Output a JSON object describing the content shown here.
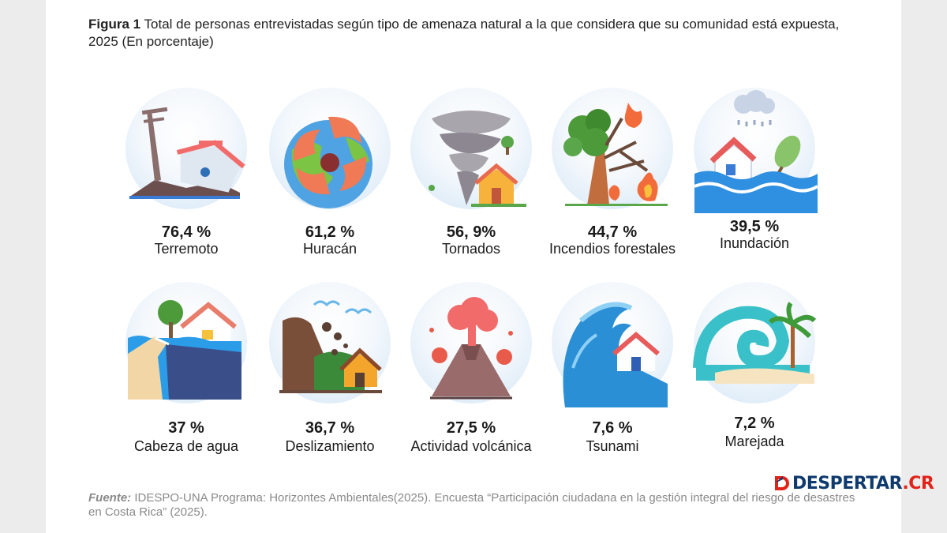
{
  "header": {
    "figure_label": "Figura 1",
    "title_text": "Total de personas entrevistadas según tipo de amenaza natural a la que considera que su comunidad está expuesta, 2025 (En porcentaje)"
  },
  "chart_data": {
    "type": "table",
    "unit": "%",
    "items": [
      {
        "label": "Terremoto",
        "value": 76.4,
        "value_text": "76,4 %",
        "icon": "earthquake-icon"
      },
      {
        "label": "Huracán",
        "value": 61.2,
        "value_text": "61,2 %",
        "icon": "hurricane-icon"
      },
      {
        "label": "Tornados",
        "value": 56.9,
        "value_text": "56, 9%",
        "icon": "tornado-icon"
      },
      {
        "label": "Incendios forestales",
        "value": 44.7,
        "value_text": "44,7 %",
        "icon": "wildfire-icon"
      },
      {
        "label": "Inundación",
        "value": 39.5,
        "value_text": "39,5 %",
        "icon": "flood-icon"
      },
      {
        "label": "Cabeza de agua",
        "value": 37,
        "value_text": "37 %",
        "icon": "flash-flood-icon"
      },
      {
        "label": "Deslizamiento",
        "value": 36.7,
        "value_text": "36,7 %",
        "icon": "landslide-icon"
      },
      {
        "label": "Actividad volcánica",
        "value": 27.5,
        "value_text": "27,5 %",
        "icon": "volcano-icon"
      },
      {
        "label": "Tsunami",
        "value": 7.6,
        "value_text": "7,6 %",
        "icon": "tsunami-icon"
      },
      {
        "label": "Marejada",
        "value": 7.2,
        "value_text": "7,2 %",
        "icon": "storm-surge-icon"
      }
    ]
  },
  "source": {
    "prefix": "Fuente:",
    "text": "IDESPO-UNA Programa: Horizontes Ambientales(2025). Encuesta “Participación ciudadana en la gestión integral del riesgo de desastres en Costa Rica” (2025)."
  },
  "branding": {
    "logo_main": "DESPERTAR",
    "logo_suffix": ".CR"
  },
  "colors": {
    "circle_bg": "#d3e6f6",
    "brand_blue": "#0e3a6e",
    "brand_red": "#e2231a"
  }
}
